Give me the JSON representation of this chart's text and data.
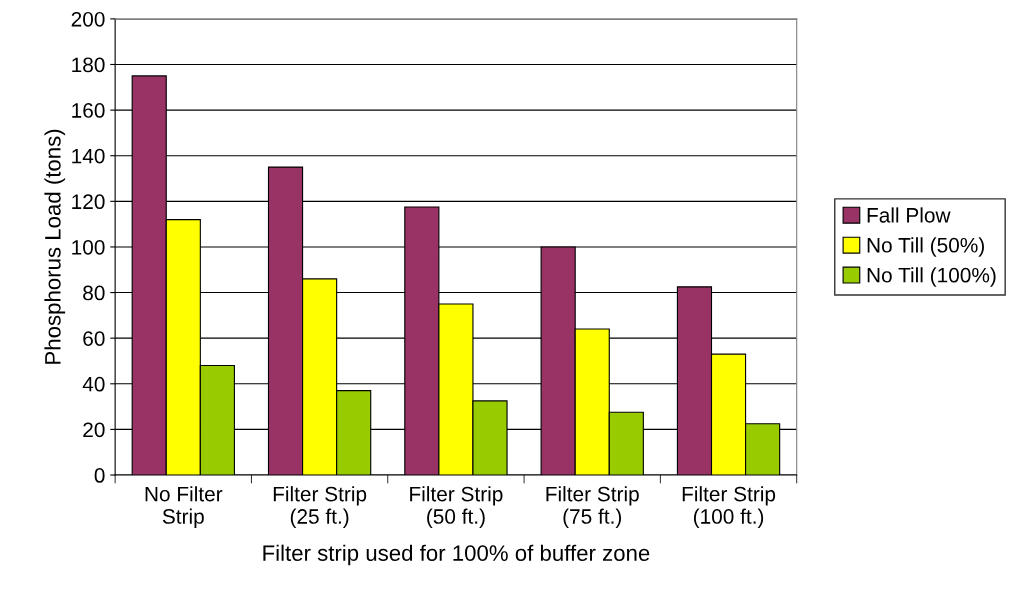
{
  "chart_data": {
    "type": "bar",
    "xlabel": "Filter strip used for 100% of buffer zone",
    "ylabel": "Phosphorus Load (tons)",
    "categories": [
      "No Filter\nStrip",
      "Filter Strip\n(25 ft.)",
      "Filter Strip\n(50 ft.)",
      "Filter Strip\n(75 ft.)",
      "Filter Strip\n(100 ft.)"
    ],
    "series": [
      {
        "name": "Fall Plow",
        "color": "#993366",
        "values": [
          175,
          135,
          117.5,
          100,
          82.5
        ]
      },
      {
        "name": "No Till (50%)",
        "color": "#ffff00",
        "values": [
          112,
          86,
          75,
          64,
          53
        ]
      },
      {
        "name": "No Till (100%)",
        "color": "#99cc00",
        "values": [
          48,
          37,
          32.5,
          27.5,
          22.5
        ]
      }
    ],
    "ylim": [
      0,
      200
    ],
    "yticks": [
      0,
      20,
      40,
      60,
      80,
      100,
      120,
      140,
      160,
      180,
      200
    ],
    "grid": "y",
    "legend": "right"
  }
}
